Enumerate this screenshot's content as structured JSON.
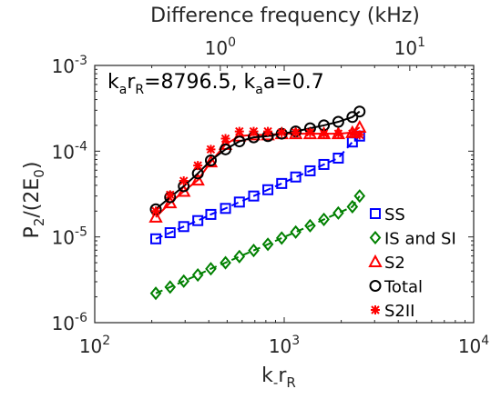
{
  "chart_data": {
    "type": "scatter",
    "xscale": "log",
    "yscale": "log",
    "xlim": [
      100,
      10000
    ],
    "ylim": [
      1e-06,
      0.001
    ],
    "x_ticks": [
      {
        "value": 100,
        "base": "10",
        "exp": "2"
      },
      {
        "value": 1000,
        "base": "10",
        "exp": "3"
      },
      {
        "value": 10000,
        "base": "10",
        "exp": "4"
      }
    ],
    "y_ticks": [
      {
        "value": 1e-06,
        "base": "10",
        "exp": "-6"
      },
      {
        "value": 1e-05,
        "base": "10",
        "exp": "-5"
      },
      {
        "value": 0.0001,
        "base": "10",
        "exp": "-4"
      },
      {
        "value": 0.001,
        "base": "10",
        "exp": "-3"
      }
    ],
    "top_axis": {
      "label": "Difference frequency (kHz)",
      "ticks": [
        {
          "text": "10",
          "position_xr": 460,
          "exp": "0"
        },
        {
          "text": "10",
          "position_xr": 4600,
          "exp": "1"
        }
      ]
    },
    "xlabel": {
      "main": "k",
      "sub1": "-",
      "mid": "r",
      "sub2": "R"
    },
    "ylabel": {
      "p": "P",
      "sub": "2",
      "mid": "/(2E",
      "sub2": "0",
      "end": ")"
    },
    "annotation": {
      "k": "k",
      "a_sub": "a",
      "r": "r",
      "R_sub": "R",
      "eq1": "=8796.5, ",
      "k2": "k",
      "a_sub2": "a",
      "eq2": "a=0.7"
    },
    "legend_position": "lower-right",
    "x": [
      210,
      250,
      295,
      350,
      410,
      490,
      580,
      690,
      820,
      970,
      1150,
      1370,
      1620,
      1930,
      2290,
      2500
    ],
    "series": [
      {
        "name": "SS",
        "color": "#0000ff",
        "marker": "square",
        "line": "dashed",
        "values": [
          9.5e-06,
          1.12e-05,
          1.32e-05,
          1.55e-05,
          1.83e-05,
          2.15e-05,
          2.55e-05,
          3e-05,
          3.55e-05,
          4.2e-05,
          5e-05,
          5.9e-05,
          7e-05,
          8.3e-05,
          0.000128,
          0.00015
        ]
      },
      {
        "name": "IS and SI",
        "color": "#008000",
        "marker": "diamond",
        "line": "dashed",
        "values": [
          2.2e-06,
          2.6e-06,
          3.05e-06,
          3.6e-06,
          4.25e-06,
          5e-06,
          5.9e-06,
          6.95e-06,
          8.2e-06,
          9.7e-06,
          1.14e-05,
          1.35e-05,
          1.6e-05,
          1.9e-05,
          2.25e-05,
          3e-05
        ]
      },
      {
        "name": "S2",
        "color": "#ff0000",
        "marker": "triangle",
        "line": "solid",
        "values": [
          1.7e-05,
          2.5e-05,
          3.4e-05,
          4.6e-05,
          7.5e-05,
          0.00012,
          0.00015,
          0.000155,
          0.000155,
          0.00016,
          0.00016,
          0.00016,
          0.00016,
          0.00016,
          0.000165,
          0.00019
        ]
      },
      {
        "name": "Total",
        "color": "#000000",
        "marker": "circle",
        "line": "solid",
        "values": [
          2.1e-05,
          2.9e-05,
          3.9e-05,
          5.5e-05,
          7.8e-05,
          0.000105,
          0.00013,
          0.000145,
          0.00015,
          0.00016,
          0.00017,
          0.000185,
          0.0002,
          0.00022,
          0.00025,
          0.00029
        ]
      },
      {
        "name": "S2II",
        "color": "#ff0000",
        "marker": "asterisk",
        "line": "none",
        "values": [
          2e-05,
          3.1e-05,
          4.5e-05,
          6.8e-05,
          0.000105,
          0.00014,
          0.00017,
          0.00017,
          0.00017,
          0.000165,
          0.000165,
          0.000165,
          0.00016,
          0.00016,
          0.00016,
          0.000155
        ]
      }
    ]
  }
}
